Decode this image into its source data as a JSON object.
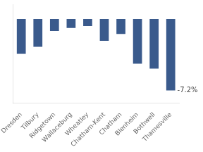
{
  "chart_data": {
    "type": "bar",
    "categories": [
      "Dresden",
      "Tilbury",
      "Ridgetown",
      "Wallaceburg",
      "Wheatley",
      "Chatham-Kent",
      "Chatham",
      "Blenheim",
      "Bothwell",
      "Thamesville"
    ],
    "values": [
      -3.5,
      -2.8,
      -1.2,
      -0.9,
      -0.7,
      -2.2,
      -1.5,
      -4.5,
      -5.0,
      -7.2
    ],
    "color": "#3a5a8c",
    "ylim": [
      -8.5,
      1.5
    ],
    "grid": false,
    "tick_labels": "x",
    "annotations": [
      {
        "text": "-7.2%",
        "x": "Thamesville",
        "y": -7.2
      }
    ]
  }
}
